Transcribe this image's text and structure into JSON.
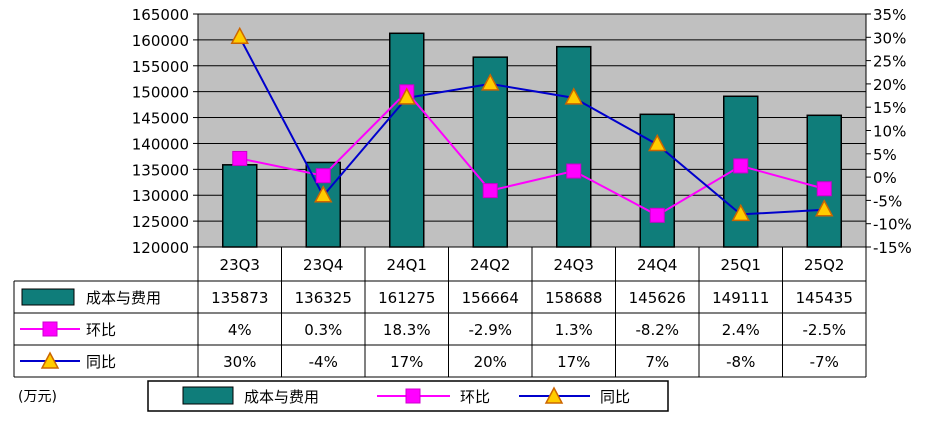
{
  "chart_data": {
    "type": "bar",
    "categories": [
      "23Q3",
      "23Q4",
      "24Q1",
      "24Q2",
      "24Q3",
      "24Q4",
      "25Q1",
      "25Q2"
    ],
    "series": [
      {
        "name": "成本与费用",
        "type": "bar",
        "axis": "left",
        "color": "#0f7d7a",
        "values": [
          135873,
          136325,
          161275,
          156664,
          158688,
          145626,
          149111,
          145435
        ],
        "labels": [
          "135873",
          "136325",
          "161275",
          "156664",
          "158688",
          "145626",
          "149111",
          "145435"
        ]
      },
      {
        "name": "环比",
        "type": "line",
        "axis": "right",
        "color": "#ff00ff",
        "marker": "square",
        "values": [
          4,
          0.3,
          18.3,
          -2.9,
          1.3,
          -8.2,
          2.4,
          -2.5
        ],
        "labels": [
          "4%",
          "0.3%",
          "18.3%",
          "-2.9%",
          "1.3%",
          "-8.2%",
          "2.4%",
          "-2.5%"
        ]
      },
      {
        "name": "同比",
        "type": "line",
        "axis": "right",
        "color": "#0000cc",
        "marker": "triangle",
        "values": [
          30,
          -4,
          17,
          20,
          17,
          7,
          -8,
          -7
        ],
        "labels": [
          "30%",
          "-4%",
          "17%",
          "20%",
          "17%",
          "7%",
          "-8%",
          "-7%"
        ]
      }
    ],
    "y_left": {
      "min": 120000,
      "max": 165000,
      "step": 5000,
      "ticks": [
        "120000",
        "125000",
        "130000",
        "135000",
        "140000",
        "145000",
        "150000",
        "155000",
        "160000",
        "165000"
      ]
    },
    "y_right": {
      "min": -15,
      "max": 35,
      "step": 5,
      "ticks": [
        "-15%",
        "-10%",
        "-5%",
        "0%",
        "5%",
        "10%",
        "15%",
        "20%",
        "25%",
        "30%",
        "35%"
      ]
    },
    "unit_label": "(万元)",
    "grid": true,
    "legend_position": "bottom",
    "data_table": true,
    "colors": {
      "bar": "#0f7d7a",
      "plot_background": "#c0c0c0",
      "triangle_fill": "#ffcc00",
      "triangle_stroke": "#cc6600"
    }
  }
}
